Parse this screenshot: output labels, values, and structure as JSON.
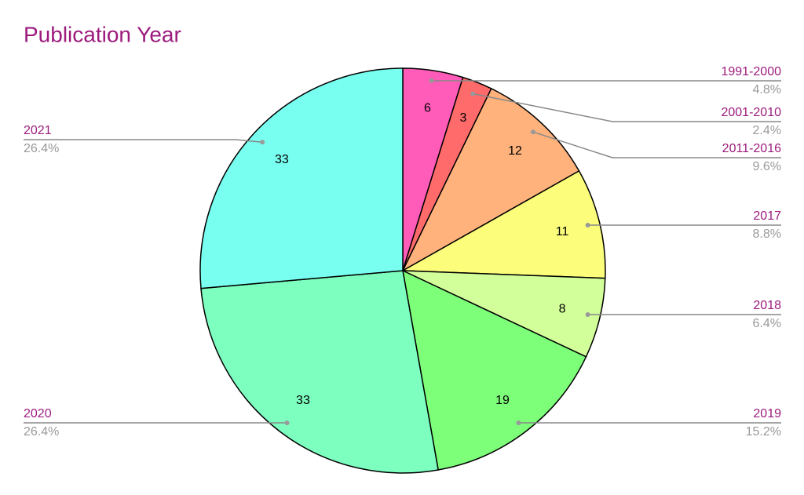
{
  "chart_data": {
    "type": "pie",
    "title": "Publication Year",
    "categories": [
      "1991-2000",
      "2001-2010",
      "2011-2016",
      "2017",
      "2018",
      "2019",
      "2020",
      "2021"
    ],
    "values": [
      6,
      3,
      12,
      11,
      8,
      19,
      33,
      33
    ],
    "percents": [
      4.8,
      2.4,
      9.6,
      8.8,
      6.4,
      15.2,
      26.4,
      26.4
    ],
    "percent_labels": [
      "4.8%",
      "2.4%",
      "9.6%",
      "8.8%",
      "6.4%",
      "15.2%",
      "26.4%",
      "26.4%"
    ],
    "colors": [
      "#ff5bb8",
      "#ff6b6b",
      "#ffb27c",
      "#fbfd7b",
      "#d3ff9a",
      "#7dff7a",
      "#7dffc0",
      "#78fff0"
    ]
  }
}
